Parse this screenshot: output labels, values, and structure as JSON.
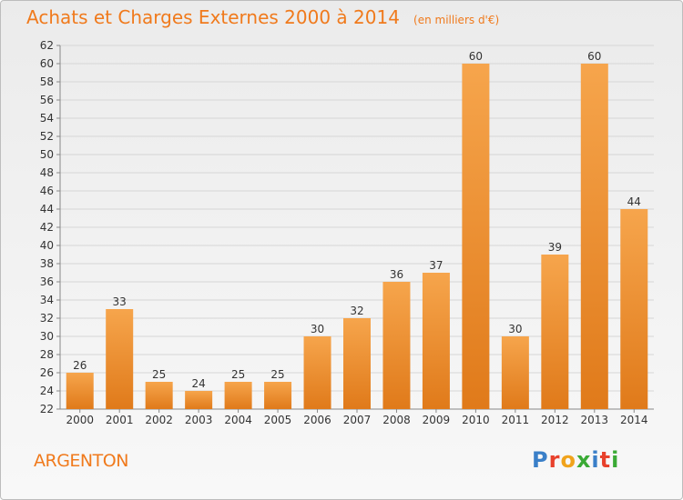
{
  "header": {
    "title": "Achats et Charges Externes 2000 à 2014",
    "subtitle": "(en milliers d'€)"
  },
  "place": "ARGENTON",
  "logo": {
    "letters": [
      "P",
      "r",
      "o",
      "x",
      "i",
      "t",
      "i"
    ],
    "colors": [
      "#3a7fc8",
      "#e8412c",
      "#f0a31c",
      "#3aaa35",
      "#3a7fc8",
      "#e8412c",
      "#3aaa35"
    ]
  },
  "chart_data": {
    "type": "bar",
    "categories": [
      "2000",
      "2001",
      "2002",
      "2003",
      "2004",
      "2005",
      "2006",
      "2007",
      "2008",
      "2009",
      "2010",
      "2011",
      "2012",
      "2013",
      "2014"
    ],
    "values": [
      26,
      33,
      25,
      24,
      25,
      25,
      30,
      32,
      36,
      37,
      60,
      30,
      39,
      60,
      44
    ],
    "ylim": [
      22,
      62
    ],
    "ytick_step": 2,
    "grid": true,
    "bar_color": "#f0922e"
  }
}
